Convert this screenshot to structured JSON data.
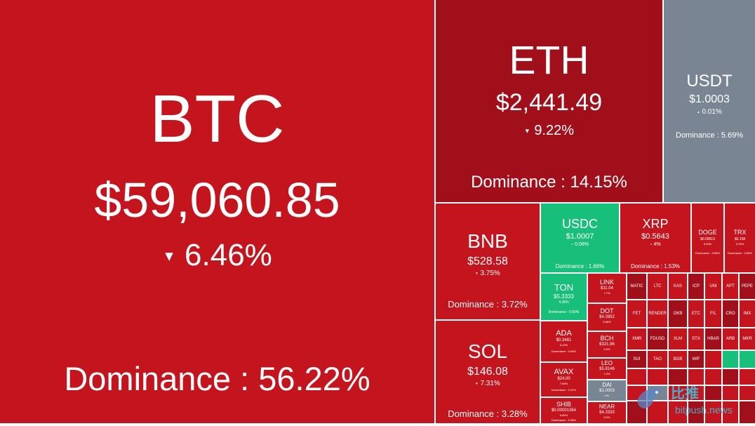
{
  "colors": {
    "down": "#c4141e",
    "down_dark": "#a10f1b",
    "up": "#18bf7a",
    "neutral": "#7a8594"
  },
  "tiles": {
    "btc": {
      "symbol": "BTC",
      "price": "$59,060.85",
      "change": "6.46%",
      "dominance": "Dominance : 56.22%"
    },
    "eth": {
      "symbol": "ETH",
      "price": "$2,441.49",
      "change": "9.22%",
      "dominance": "Dominance : 14.15%"
    },
    "usdt": {
      "symbol": "USDT",
      "price": "$1.0003",
      "change": "0.01%",
      "dominance": "Dominance : 5.69%"
    },
    "bnb": {
      "symbol": "BNB",
      "price": "$528.58",
      "change": "3.75%",
      "dominance": "Dominance : 3.72%"
    },
    "sol": {
      "symbol": "SOL",
      "price": "$146.08",
      "change": "7.31%",
      "dominance": "Dominance : 3.28%"
    },
    "usdc": {
      "symbol": "USDC",
      "price": "$1.0007",
      "change": "0.08%",
      "dominance": "Dominance : 1.66%"
    },
    "xrp": {
      "symbol": "XRP",
      "price": "$0.5643",
      "change": "4%",
      "dominance": "Dominance : 1.53%"
    },
    "doge": {
      "symbol": "DOGE",
      "price": "$0.09813",
      "change": "8.63%",
      "dominance": "Dominance : 0.66%"
    },
    "trx": {
      "symbol": "TRX",
      "price": "$0.158",
      "change": "0.33%",
      "dominance": "Dominance : 0.65%"
    },
    "ton": {
      "symbol": "TON",
      "price": "$5.3333",
      "change": "4.36%",
      "dominance": "Dominance : 0.60%"
    },
    "ada": {
      "symbol": "ADA",
      "price": "$0.3481",
      "change": "5.43%",
      "dominance": "Dominance : 0.60%"
    },
    "avax": {
      "symbol": "AVAX",
      "price": "$24.00",
      "change": "7.66%",
      "dominance": "Dominance : 0.47%"
    },
    "shib": {
      "symbol": "SHIB",
      "price": "$0.00001364",
      "change": "6.85%",
      "dominance": "Dominance : 0.38%"
    },
    "link": {
      "symbol": "LINK",
      "price": "$11.04",
      "change": "7.7%"
    },
    "dot": {
      "symbol": "DOT",
      "price": "$4.2852",
      "change": "5.86%"
    },
    "bch": {
      "symbol": "BCH",
      "price": "$321.96",
      "change": "5.6%"
    },
    "leo": {
      "symbol": "LEO",
      "price": "$5.8146",
      "change": "1.3%"
    },
    "dai": {
      "symbol": "DAI",
      "price": "$1.0003",
      "change": "0%"
    },
    "near": {
      "symbol": "NEAR",
      "price": "$4.3333",
      "change": "5.9%"
    }
  },
  "minis": [
    {
      "symbol": "MATIC"
    },
    {
      "symbol": "LTC"
    },
    {
      "symbol": "KAS"
    },
    {
      "symbol": "ICP"
    },
    {
      "symbol": "UNI"
    },
    {
      "symbol": "APT"
    },
    {
      "symbol": "PEPE"
    },
    {
      "symbol": "FET"
    },
    {
      "symbol": "RENDER"
    },
    {
      "symbol": "OKB"
    },
    {
      "symbol": "ETC"
    },
    {
      "symbol": "FIL"
    },
    {
      "symbol": "CRO"
    },
    {
      "symbol": "IMX"
    },
    {
      "symbol": "XMR"
    },
    {
      "symbol": "FDUSD"
    },
    {
      "symbol": "XLM"
    },
    {
      "symbol": "STX"
    },
    {
      "symbol": "HBAR"
    },
    {
      "symbol": "ARB"
    },
    {
      "symbol": "MKR"
    },
    {
      "symbol": "SUI"
    },
    {
      "symbol": "TAO"
    },
    {
      "symbol": "BGB"
    },
    {
      "symbol": "WIF"
    }
  ],
  "watermark": {
    "cn": "比推",
    "en": "bitpush.news"
  }
}
